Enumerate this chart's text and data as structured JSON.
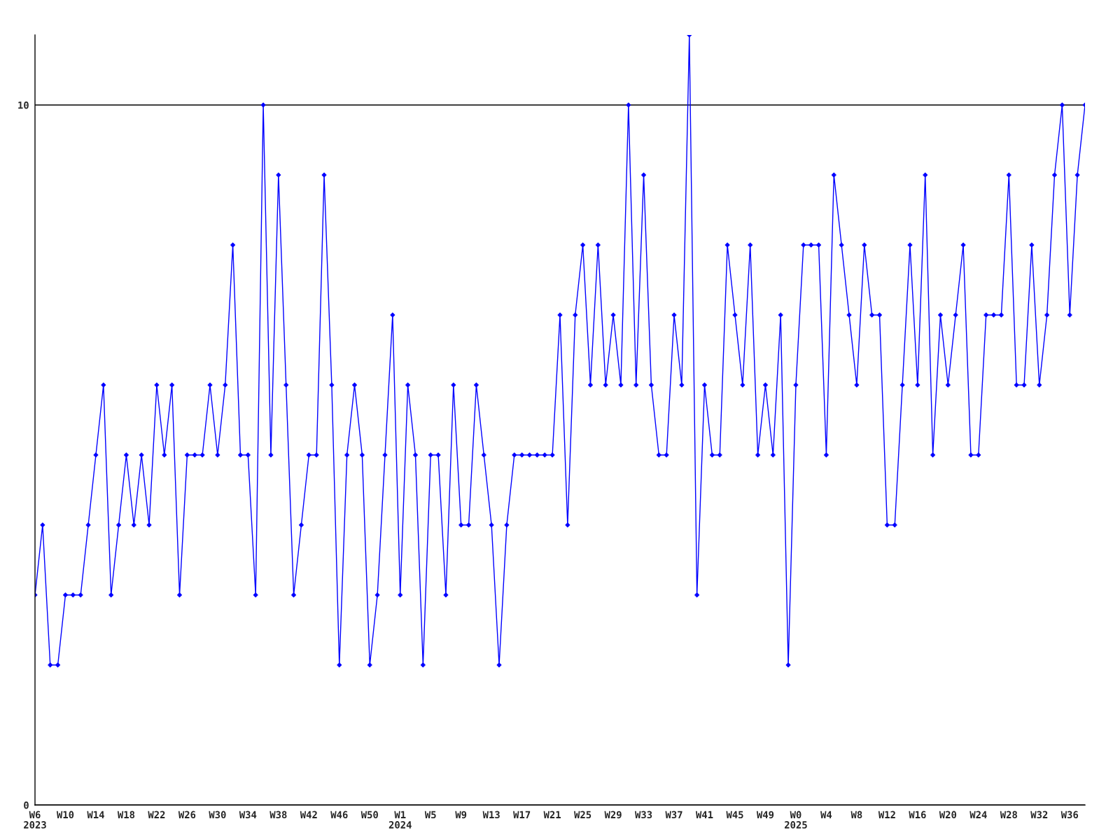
{
  "chart_data": {
    "type": "line",
    "categories": [
      "W6\n2023",
      null,
      null,
      null,
      "W10",
      null,
      null,
      null,
      "W14",
      null,
      null,
      null,
      "W18",
      null,
      null,
      null,
      "W22",
      null,
      null,
      null,
      "W26",
      null,
      null,
      null,
      "W30",
      null,
      null,
      null,
      "W34",
      null,
      null,
      null,
      "W38",
      null,
      null,
      null,
      "W42",
      null,
      null,
      null,
      "W46",
      null,
      null,
      null,
      "W50",
      null,
      null,
      null,
      "W1\n2024",
      null,
      null,
      null,
      "W5",
      null,
      null,
      null,
      "W9",
      null,
      null,
      null,
      "W13",
      null,
      null,
      null,
      "W17",
      null,
      null,
      null,
      "W21",
      null,
      null,
      null,
      "W25",
      null,
      null,
      null,
      "W29",
      null,
      null,
      null,
      "W33",
      null,
      null,
      null,
      "W37",
      null,
      null,
      null,
      "W41",
      null,
      null,
      null,
      "W45",
      null,
      null,
      null,
      "W49",
      null,
      null,
      null,
      "W0\n2025",
      null,
      null,
      null,
      "W4",
      null,
      null,
      null,
      "W8",
      null,
      null,
      null,
      "W12",
      null,
      null,
      null,
      "W16",
      null,
      null,
      null,
      "W20",
      null,
      null,
      null,
      "W24",
      null,
      null,
      null,
      "W28",
      null,
      null,
      null,
      "W32",
      null,
      null,
      null,
      "W36",
      null,
      null
    ],
    "series": [
      {
        "color": "#0000ff",
        "values": [
          3,
          4,
          2,
          2,
          3,
          3,
          3,
          4,
          5,
          6,
          3,
          4,
          5,
          4,
          5,
          4,
          6,
          5,
          6,
          3,
          5,
          5,
          5,
          6,
          5,
          6,
          8,
          5,
          5,
          3,
          10,
          5,
          9,
          6,
          3,
          4,
          5,
          5,
          9,
          6,
          2,
          5,
          6,
          5,
          2,
          3,
          5,
          7,
          3,
          6,
          5,
          2,
          5,
          5,
          3,
          6,
          4,
          4,
          6,
          5,
          4,
          2,
          4,
          5,
          5,
          5,
          5,
          5,
          5,
          7,
          4,
          7,
          8,
          6,
          8,
          6,
          7,
          6,
          10,
          6,
          9,
          6,
          5,
          5,
          7,
          6,
          11,
          3,
          6,
          5,
          5,
          8,
          7,
          6,
          8,
          5,
          6,
          5,
          7,
          2,
          6,
          8,
          8,
          8,
          5,
          9,
          8,
          7,
          6,
          8,
          7,
          7,
          4,
          4,
          6,
          8,
          6,
          9,
          5,
          7,
          6,
          7,
          8,
          5,
          5,
          7,
          7,
          7,
          9,
          6,
          6,
          8,
          6,
          7,
          9,
          10,
          7,
          9,
          10
        ]
      }
    ],
    "ylim": [
      0,
      11
    ],
    "yticks": [
      0,
      10
    ],
    "grid": "y",
    "marker": "diamond",
    "line_style": "solid"
  }
}
